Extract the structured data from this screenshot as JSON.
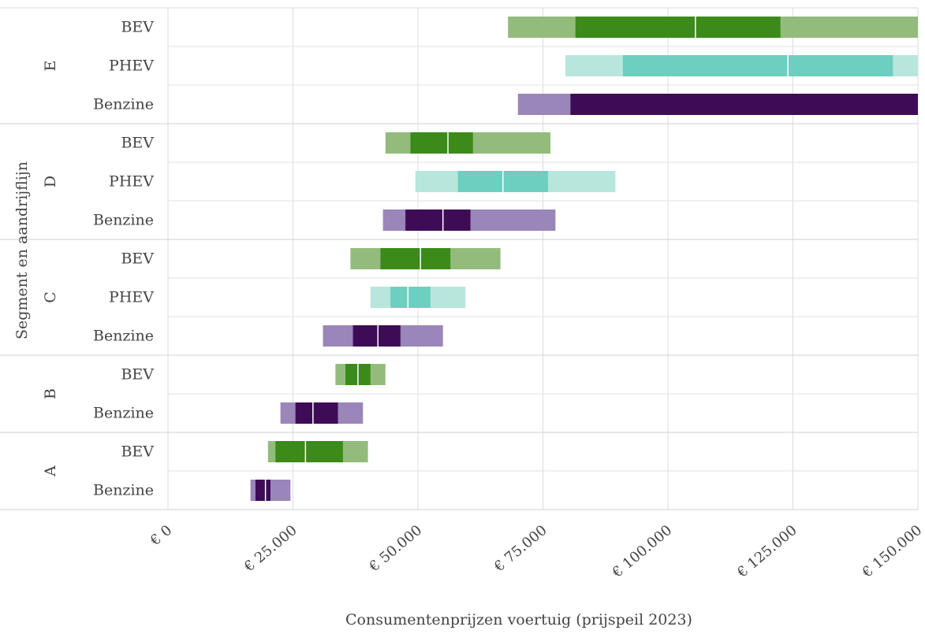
{
  "chart_data": {
    "type": "bar",
    "orientation": "horizontal",
    "xlabel": "Consumentenprijzen voertuig (prijspeil 2023)",
    "ylabel": "Segment en aandrijflijn",
    "xlim": [
      0,
      150000
    ],
    "x_ticks": [
      0,
      25000,
      50000,
      75000,
      100000,
      125000,
      150000
    ],
    "x_tick_labels": [
      "€ 0",
      "€ 25.000",
      "€ 50.000",
      "€ 75.000",
      "€ 100.000",
      "€ 125.000",
      "€ 150.000"
    ],
    "grid": true,
    "legend": "none",
    "colors": {
      "BEV": {
        "outer": "#93bc7c",
        "inner": "#3b8a1a"
      },
      "PHEV": {
        "outer": "#b7e6dd",
        "inner": "#6ccfc0"
      },
      "Benzine": {
        "outer": "#9a86b8",
        "inner": "#3e0c57"
      }
    },
    "groups": [
      {
        "segment": "E",
        "rows": [
          {
            "label": "BEV",
            "powertrain": "BEV",
            "outer": [
              68000,
              150000
            ],
            "inner": [
              81500,
              122500
            ],
            "median": 105500
          },
          {
            "label": "PHEV",
            "powertrain": "PHEV",
            "outer": [
              79500,
              150000
            ],
            "inner": [
              91000,
              145000
            ],
            "median": 124000
          },
          {
            "label": "Benzine",
            "powertrain": "Benzine",
            "outer": [
              70000,
              150000
            ],
            "inner": [
              80500,
              150000
            ],
            "median": null
          }
        ]
      },
      {
        "segment": "D",
        "rows": [
          {
            "label": "BEV",
            "powertrain": "BEV",
            "outer": [
              43500,
              76500
            ],
            "inner": [
              48500,
              61000
            ],
            "median": 56000
          },
          {
            "label": "PHEV",
            "powertrain": "PHEV",
            "outer": [
              49500,
              89500
            ],
            "inner": [
              58000,
              76000
            ],
            "median": 67000
          },
          {
            "label": "Benzine",
            "powertrain": "Benzine",
            "outer": [
              43000,
              77500
            ],
            "inner": [
              47500,
              60500
            ],
            "median": 55000
          }
        ]
      },
      {
        "segment": "C",
        "rows": [
          {
            "label": "BEV",
            "powertrain": "BEV",
            "outer": [
              36500,
              66500
            ],
            "inner": [
              42500,
              56500
            ],
            "median": 50500
          },
          {
            "label": "PHEV",
            "powertrain": "PHEV",
            "outer": [
              40500,
              59500
            ],
            "inner": [
              44500,
              52500
            ],
            "median": 48000
          },
          {
            "label": "Benzine",
            "powertrain": "Benzine",
            "outer": [
              31000,
              55000
            ],
            "inner": [
              37000,
              46500
            ],
            "median": 42000
          }
        ]
      },
      {
        "segment": "B",
        "rows": [
          {
            "label": "BEV",
            "powertrain": "BEV",
            "outer": [
              33500,
              43500
            ],
            "inner": [
              35500,
              40500
            ],
            "median": 38000
          },
          {
            "label": "Benzine",
            "powertrain": "Benzine",
            "outer": [
              22500,
              39000
            ],
            "inner": [
              25500,
              34000
            ],
            "median": 29000
          }
        ]
      },
      {
        "segment": "A",
        "rows": [
          {
            "label": "BEV",
            "powertrain": "BEV",
            "outer": [
              20000,
              40000
            ],
            "inner": [
              21500,
              35000
            ],
            "median": 27500
          },
          {
            "label": "Benzine",
            "powertrain": "Benzine",
            "outer": [
              16500,
              24500
            ],
            "inner": [
              17500,
              20500
            ],
            "median": 19500
          }
        ]
      }
    ]
  }
}
